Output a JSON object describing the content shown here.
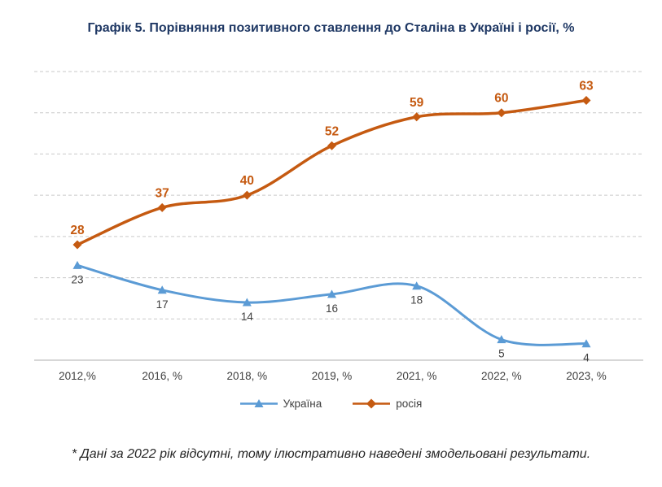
{
  "footnote": "* Дані за 2022 рік відсутні, тому ілюстративно наведені змодельовані результати.",
  "chart_data": {
    "type": "line",
    "title": "Графік 5. Порівняння позитивного ставлення до Сталіна в Україні і росії, %",
    "xlabel": "",
    "ylabel": "",
    "categories": [
      "2012,%",
      "2016, %",
      "2018, %",
      "2019, %",
      "2021, %",
      "2022, %",
      "2023, %"
    ],
    "series": [
      {
        "name": "Україна",
        "values": [
          23,
          17,
          14,
          16,
          18,
          5,
          4
        ],
        "color": "#5B9BD5",
        "marker": "triangle",
        "label_position": "below",
        "label_color": "#404040"
      },
      {
        "name": "росія",
        "values": [
          28,
          37,
          40,
          52,
          59,
          60,
          63
        ],
        "color": "#C55A11",
        "marker": "diamond",
        "label_position": "above",
        "label_color": "#C55A11"
      }
    ],
    "ylim": [
      0,
      70
    ],
    "grid": true,
    "grid_step": 10,
    "gridline_color": "#C9C9C9",
    "axis_color": "#BFBFBF",
    "legend_position": "bottom"
  }
}
